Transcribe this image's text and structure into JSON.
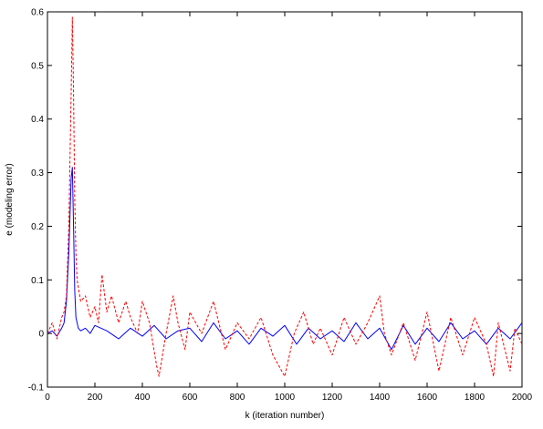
{
  "chart_data": {
    "type": "line",
    "title": "",
    "xlabel": "k (iteration number)",
    "ylabel": "e (modeling error)",
    "xlim": [
      0,
      2000
    ],
    "ylim": [
      -0.1,
      0.6
    ],
    "xticks": [
      0,
      200,
      400,
      600,
      800,
      1000,
      1200,
      1400,
      1600,
      1800,
      2000
    ],
    "yticks": [
      -0.1,
      0,
      0.1,
      0.2,
      0.3,
      0.4,
      0.5,
      0.6
    ],
    "xtick_labels": [
      "0",
      "200",
      "400",
      "600",
      "800",
      "1000",
      "1200",
      "1400",
      "1600",
      "1800",
      "2000"
    ],
    "ytick_labels": [
      "-0.1",
      "0",
      "0.1",
      "0.2",
      "0.3",
      "0.4",
      "0.5",
      "0.6"
    ],
    "grid": false,
    "series": [
      {
        "style": "solid",
        "color": "#0000ff",
        "x": [
          0,
          20,
          40,
          60,
          70,
          80,
          90,
          100,
          105,
          110,
          115,
          120,
          130,
          140,
          160,
          180,
          200,
          250,
          300,
          350,
          400,
          450,
          500,
          550,
          600,
          650,
          700,
          750,
          800,
          850,
          900,
          950,
          1000,
          1050,
          1100,
          1150,
          1200,
          1250,
          1300,
          1350,
          1400,
          1450,
          1500,
          1550,
          1600,
          1650,
          1700,
          1750,
          1800,
          1850,
          1900,
          1950,
          2000
        ],
        "y": [
          0.0,
          0.005,
          -0.005,
          0.01,
          0.02,
          0.06,
          0.15,
          0.29,
          0.31,
          0.2,
          0.08,
          0.03,
          0.01,
          0.005,
          0.01,
          0.0,
          0.015,
          0.005,
          -0.01,
          0.01,
          -0.005,
          0.015,
          -0.01,
          0.005,
          0.01,
          -0.015,
          0.02,
          -0.01,
          0.005,
          -0.02,
          0.01,
          -0.005,
          0.015,
          -0.02,
          0.01,
          -0.01,
          0.005,
          -0.015,
          0.02,
          -0.01,
          0.01,
          -0.03,
          0.015,
          -0.02,
          0.01,
          -0.015,
          0.02,
          -0.01,
          0.005,
          -0.02,
          0.01,
          -0.01,
          0.02
        ]
      },
      {
        "style": "dashed",
        "color": "#ff0000",
        "x": [
          0,
          20,
          40,
          60,
          70,
          80,
          90,
          100,
          105,
          110,
          115,
          120,
          125,
          140,
          160,
          180,
          200,
          215,
          230,
          250,
          270,
          300,
          330,
          350,
          380,
          400,
          430,
          460,
          470,
          500,
          530,
          550,
          580,
          600,
          650,
          700,
          750,
          800,
          850,
          900,
          950,
          1000,
          1040,
          1080,
          1120,
          1150,
          1200,
          1250,
          1300,
          1350,
          1400,
          1420,
          1450,
          1500,
          1550,
          1600,
          1650,
          1700,
          1750,
          1800,
          1850,
          1880,
          1900,
          1950,
          1970,
          2000
        ],
        "y": [
          0.0,
          0.02,
          -0.01,
          0.03,
          0.04,
          0.07,
          0.2,
          0.45,
          0.59,
          0.45,
          0.25,
          0.15,
          0.1,
          0.06,
          0.07,
          0.03,
          0.05,
          0.02,
          0.11,
          0.04,
          0.07,
          0.02,
          0.06,
          0.03,
          0.0,
          0.06,
          0.02,
          -0.06,
          -0.08,
          0.0,
          0.07,
          0.02,
          -0.03,
          0.04,
          0.0,
          0.06,
          -0.03,
          0.02,
          -0.01,
          0.03,
          -0.04,
          -0.08,
          0.0,
          0.04,
          -0.02,
          0.01,
          -0.04,
          0.03,
          -0.02,
          0.02,
          0.07,
          0.0,
          -0.04,
          0.02,
          -0.05,
          0.04,
          -0.07,
          0.03,
          -0.04,
          0.03,
          -0.02,
          -0.08,
          0.02,
          -0.07,
          0.01,
          -0.02
        ]
      }
    ]
  }
}
